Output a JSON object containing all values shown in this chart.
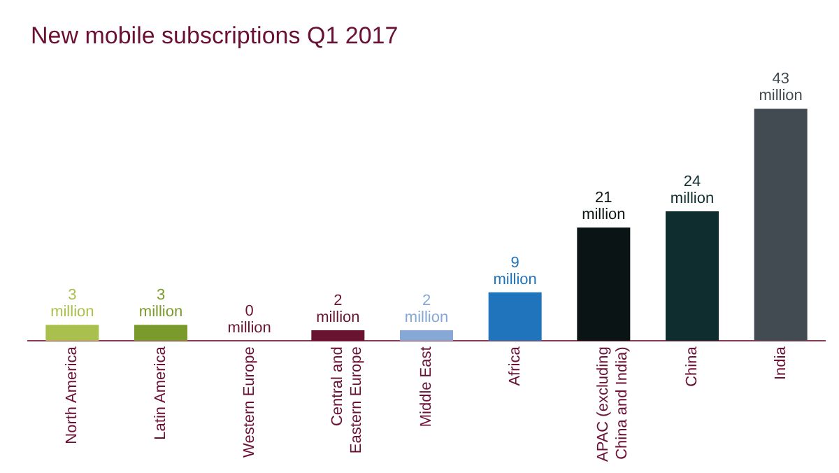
{
  "chart_data": {
    "type": "bar",
    "title": "New mobile subscriptions Q1 2017",
    "categories": [
      "North America",
      "Latin America",
      "Western Europe",
      "Central and Eastern Europe",
      "Middle East",
      "Africa",
      "APAC (excluding China and India)",
      "China",
      "India"
    ],
    "values": [
      3,
      3,
      0,
      2,
      2,
      9,
      21,
      24,
      43
    ],
    "colors": [
      "#a9c04e",
      "#7a9a2c",
      "#6a1330",
      "#6a1330",
      "#86a8d4",
      "#1f74bb",
      "#0b1414",
      "#0f2c2e",
      "#414b51"
    ],
    "value_labels": [
      "3 million",
      "3 million",
      "0 million",
      "2 million",
      "2 million",
      "9 million",
      "21 million",
      "24 million",
      "43 million"
    ],
    "grid": false,
    "legend": false
  }
}
